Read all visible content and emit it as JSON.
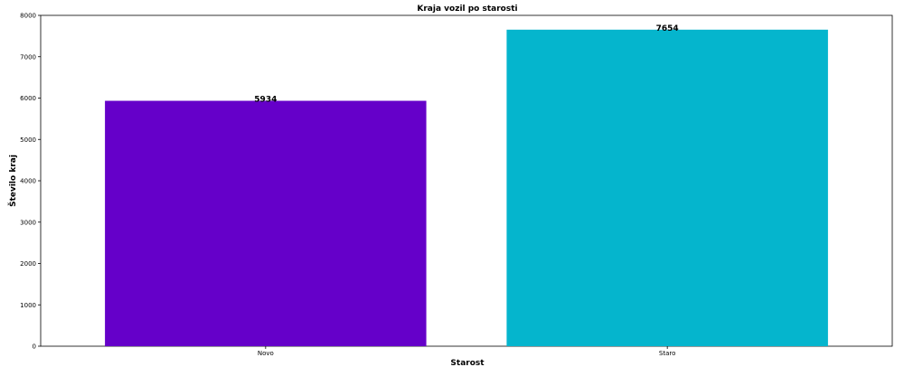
{
  "chart_data": {
    "type": "bar",
    "title": "Kraja vozil po starosti",
    "xlabel": "Starost",
    "ylabel": "Število kraj",
    "categories": [
      "Novo",
      "Staro"
    ],
    "values": [
      5934,
      7654
    ],
    "data_labels": [
      "5934",
      "7654"
    ],
    "colors": [
      "#6500C9",
      "#05B5CD"
    ],
    "ylim": [
      0,
      8000
    ],
    "yticks": [
      0,
      1000,
      2000,
      3000,
      4000,
      5000,
      6000,
      7000,
      8000
    ],
    "ytick_labels": [
      "0",
      "1000",
      "2000",
      "3000",
      "4000",
      "5000",
      "6000",
      "7000",
      "8000"
    ],
    "grid": false,
    "legend": "none"
  }
}
